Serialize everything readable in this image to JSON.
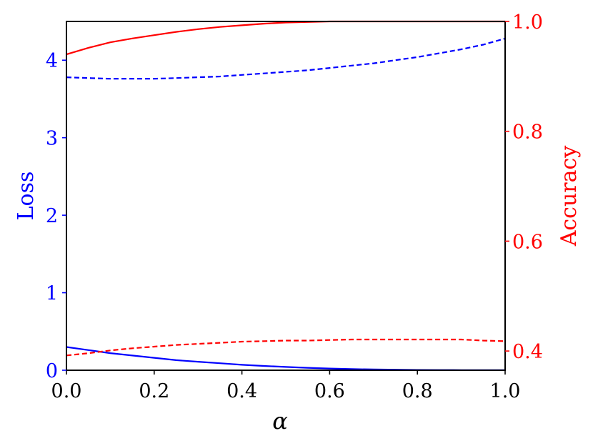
{
  "chart_data": {
    "type": "line",
    "xlabel": "α",
    "ylabel_left": "Loss",
    "ylabel_right": "Accuracy",
    "xlim": [
      0.0,
      1.0
    ],
    "ylim_left": [
      0.0,
      4.5
    ],
    "ylim_right": [
      0.365,
      1.0
    ],
    "xticks": [
      "0.0",
      "0.2",
      "0.4",
      "0.6",
      "0.8",
      "1.0"
    ],
    "yticks_left": [
      "0",
      "1",
      "2",
      "3",
      "4"
    ],
    "yticks_right": [
      "0.4",
      "0.6",
      "0.8",
      "1.0"
    ],
    "grid": false,
    "colors": {
      "loss": "#0000ff",
      "accuracy": "#ff0000",
      "axes": "#000000"
    },
    "x": [
      0.0,
      0.05,
      0.1,
      0.15,
      0.2,
      0.25,
      0.3,
      0.35,
      0.4,
      0.45,
      0.5,
      0.55,
      0.6,
      0.65,
      0.7,
      0.75,
      0.8,
      0.85,
      0.9,
      0.95,
      1.0
    ],
    "series": [
      {
        "axis": "left",
        "color": "#0000ff",
        "style": "solid",
        "values": [
          0.3,
          0.26,
          0.22,
          0.19,
          0.16,
          0.13,
          0.11,
          0.09,
          0.07,
          0.055,
          0.042,
          0.031,
          0.022,
          0.015,
          0.01,
          0.007,
          0.004,
          0.003,
          0.002,
          0.001,
          0.001
        ]
      },
      {
        "axis": "left",
        "color": "#0000ff",
        "style": "dashed",
        "values": [
          3.78,
          3.77,
          3.76,
          3.76,
          3.76,
          3.77,
          3.78,
          3.79,
          3.81,
          3.83,
          3.85,
          3.87,
          3.9,
          3.93,
          3.96,
          4.0,
          4.04,
          4.09,
          4.14,
          4.2,
          4.28
        ]
      },
      {
        "axis": "right",
        "color": "#ff0000",
        "style": "solid",
        "values": [
          0.94,
          0.952,
          0.962,
          0.969,
          0.975,
          0.981,
          0.986,
          0.99,
          0.993,
          0.996,
          0.998,
          0.999,
          1.0,
          1.0,
          1.0,
          1.0,
          1.0,
          1.0,
          1.0,
          1.0,
          1.0
        ]
      },
      {
        "axis": "right",
        "color": "#ff0000",
        "style": "dashed",
        "values": [
          0.392,
          0.396,
          0.401,
          0.405,
          0.408,
          0.411,
          0.413,
          0.415,
          0.417,
          0.418,
          0.419,
          0.419,
          0.42,
          0.421,
          0.421,
          0.421,
          0.421,
          0.421,
          0.421,
          0.419,
          0.418
        ]
      }
    ]
  }
}
